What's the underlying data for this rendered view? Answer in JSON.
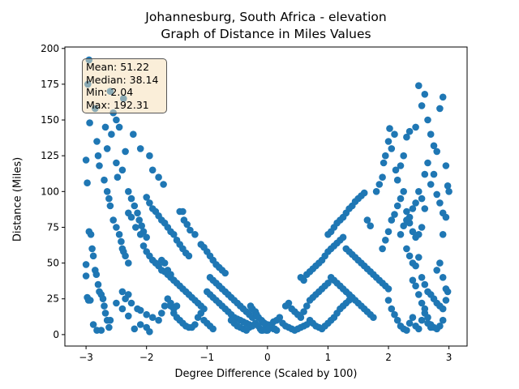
{
  "chart_data": {
    "type": "scatter",
    "title": "Johannesburg, South Africa - elevation",
    "subtitle": "Graph of Distance in Miles Values",
    "xlabel": "Degree Difference (Scaled by 100)",
    "ylabel": "Distance (Miles)",
    "xlim": [
      -3.35,
      3.3
    ],
    "ylim": [
      -8,
      201
    ],
    "xticks": [
      -3,
      -2,
      -1,
      0,
      1,
      2,
      3
    ],
    "yticks": [
      0,
      25,
      50,
      75,
      100,
      125,
      150,
      175,
      200
    ],
    "grid": false,
    "marker_color": "#1f77b4",
    "stats_box": {
      "mean": "Mean: 51.22",
      "median": "Median: 38.14",
      "min": "Min: 2.04",
      "max": "Max: 192.31"
    },
    "points": [
      [
        -2.95,
        192
      ],
      [
        -2.97,
        175
      ],
      [
        -2.94,
        148
      ],
      [
        -2.85,
        158
      ],
      [
        -2.6,
        170
      ],
      [
        -2.55,
        155
      ],
      [
        -2.5,
        150
      ],
      [
        -2.45,
        145
      ],
      [
        -2.38,
        165
      ],
      [
        -2.22,
        140
      ],
      [
        -2.1,
        130
      ],
      [
        -1.95,
        125
      ],
      [
        -1.9,
        115
      ],
      [
        -1.8,
        110
      ],
      [
        -1.72,
        105
      ],
      [
        -3.0,
        122
      ],
      [
        -2.98,
        106
      ],
      [
        -2.95,
        72
      ],
      [
        -2.92,
        70
      ],
      [
        -2.9,
        60
      ],
      [
        -2.88,
        55
      ],
      [
        -2.85,
        45
      ],
      [
        -2.83,
        42
      ],
      [
        -2.8,
        35
      ],
      [
        -2.78,
        30
      ],
      [
        -2.75,
        28
      ],
      [
        -2.72,
        25
      ],
      [
        -2.7,
        20
      ],
      [
        -2.68,
        15
      ],
      [
        -2.65,
        10
      ],
      [
        -2.62,
        5
      ],
      [
        -3.0,
        49
      ],
      [
        -3.0,
        41
      ],
      [
        -2.98,
        26
      ],
      [
        -2.96,
        24
      ],
      [
        -2.93,
        24
      ],
      [
        -2.88,
        7
      ],
      [
        -2.82,
        3
      ],
      [
        -2.75,
        3
      ],
      [
        -2.6,
        10
      ],
      [
        -2.5,
        22
      ],
      [
        -2.4,
        18
      ],
      [
        -2.3,
        13
      ],
      [
        -2.2,
        4
      ],
      [
        -2.1,
        7
      ],
      [
        -2.0,
        5
      ],
      [
        -1.95,
        2
      ],
      [
        -2.82,
        135
      ],
      [
        -2.8,
        125
      ],
      [
        -2.78,
        118
      ],
      [
        -2.7,
        108
      ],
      [
        -2.65,
        100
      ],
      [
        -2.62,
        95
      ],
      [
        -2.6,
        90
      ],
      [
        -2.55,
        80
      ],
      [
        -2.5,
        75
      ],
      [
        -2.45,
        70
      ],
      [
        -2.42,
        65
      ],
      [
        -2.4,
        60
      ],
      [
        -2.38,
        58
      ],
      [
        -2.35,
        55
      ],
      [
        -2.3,
        50
      ],
      [
        -2.68,
        145
      ],
      [
        -2.65,
        130
      ],
      [
        -2.58,
        140
      ],
      [
        -2.5,
        120
      ],
      [
        -2.48,
        110
      ],
      [
        -2.4,
        115
      ],
      [
        -2.35,
        128
      ],
      [
        -2.3,
        100
      ],
      [
        -2.25,
        95
      ],
      [
        -2.2,
        90
      ],
      [
        -2.15,
        85
      ],
      [
        -2.12,
        80
      ],
      [
        -2.08,
        76
      ],
      [
        -2.05,
        72
      ],
      [
        -2.0,
        68
      ],
      [
        -2.3,
        85
      ],
      [
        -2.25,
        82
      ],
      [
        -2.18,
        75
      ],
      [
        -2.1,
        70
      ],
      [
        -2.05,
        62
      ],
      [
        -2.0,
        58
      ],
      [
        -1.95,
        55
      ],
      [
        -1.9,
        52
      ],
      [
        -1.85,
        50
      ],
      [
        -1.8,
        48
      ],
      [
        -1.75,
        45
      ],
      [
        -1.7,
        44
      ],
      [
        -1.65,
        42
      ],
      [
        -1.6,
        40
      ],
      [
        -1.55,
        38
      ],
      [
        -2.0,
        96
      ],
      [
        -1.95,
        92
      ],
      [
        -1.9,
        88
      ],
      [
        -1.85,
        86
      ],
      [
        -1.8,
        83
      ],
      [
        -1.75,
        80
      ],
      [
        -1.7,
        78
      ],
      [
        -1.65,
        75
      ],
      [
        -1.6,
        72
      ],
      [
        -1.55,
        70
      ],
      [
        -1.5,
        66
      ],
      [
        -1.45,
        63
      ],
      [
        -1.4,
        60
      ],
      [
        -1.35,
        57
      ],
      [
        -1.3,
        55
      ],
      [
        -1.45,
        86
      ],
      [
        -1.4,
        86
      ],
      [
        -1.38,
        80
      ],
      [
        -1.33,
        77
      ],
      [
        -1.28,
        73
      ],
      [
        -1.2,
        70
      ],
      [
        -1.1,
        63
      ],
      [
        -1.05,
        61
      ],
      [
        -1.0,
        58
      ],
      [
        -0.95,
        55
      ],
      [
        -0.9,
        52
      ],
      [
        -0.85,
        49
      ],
      [
        -0.8,
        47
      ],
      [
        -0.75,
        45
      ],
      [
        -0.7,
        43
      ],
      [
        -1.75,
        52
      ],
      [
        -1.7,
        50
      ],
      [
        -1.65,
        45
      ],
      [
        -1.6,
        42
      ],
      [
        -1.55,
        38
      ],
      [
        -1.5,
        36
      ],
      [
        -1.45,
        34
      ],
      [
        -1.4,
        32
      ],
      [
        -1.35,
        30
      ],
      [
        -1.3,
        28
      ],
      [
        -1.25,
        26
      ],
      [
        -1.2,
        24
      ],
      [
        -1.15,
        22
      ],
      [
        -1.1,
        20
      ],
      [
        -1.05,
        18
      ],
      [
        -1.6,
        20
      ],
      [
        -1.55,
        15
      ],
      [
        -1.5,
        12
      ],
      [
        -1.45,
        10
      ],
      [
        -1.4,
        8
      ],
      [
        -1.35,
        6
      ],
      [
        -1.3,
        5
      ],
      [
        -1.25,
        5
      ],
      [
        -1.2,
        7
      ],
      [
        -1.15,
        12
      ],
      [
        -1.1,
        15
      ],
      [
        -1.05,
        10
      ],
      [
        -1.0,
        8
      ],
      [
        -0.95,
        6
      ],
      [
        -0.9,
        4
      ],
      [
        -2.4,
        30
      ],
      [
        -2.35,
        25
      ],
      [
        -2.3,
        28
      ],
      [
        -2.25,
        22
      ],
      [
        -2.15,
        18
      ],
      [
        -2.1,
        17
      ],
      [
        -2.0,
        14
      ],
      [
        -1.9,
        12
      ],
      [
        -1.8,
        10
      ],
      [
        -1.75,
        15
      ],
      [
        -1.7,
        20
      ],
      [
        -1.65,
        25
      ],
      [
        -1.6,
        22
      ],
      [
        -1.55,
        18
      ],
      [
        -1.5,
        20
      ],
      [
        -1.0,
        30
      ],
      [
        -0.95,
        28
      ],
      [
        -0.9,
        26
      ],
      [
        -0.85,
        24
      ],
      [
        -0.8,
        22
      ],
      [
        -0.75,
        20
      ],
      [
        -0.7,
        18
      ],
      [
        -0.65,
        16
      ],
      [
        -0.6,
        14
      ],
      [
        -0.55,
        12
      ],
      [
        -0.5,
        11
      ],
      [
        -0.45,
        10
      ],
      [
        -0.4,
        9
      ],
      [
        -0.35,
        8
      ],
      [
        -0.3,
        7
      ],
      [
        -0.95,
        40
      ],
      [
        -0.9,
        38
      ],
      [
        -0.85,
        36
      ],
      [
        -0.8,
        34
      ],
      [
        -0.75,
        32
      ],
      [
        -0.7,
        30
      ],
      [
        -0.65,
        28
      ],
      [
        -0.6,
        26
      ],
      [
        -0.55,
        24
      ],
      [
        -0.5,
        22
      ],
      [
        -0.45,
        20
      ],
      [
        -0.4,
        18
      ],
      [
        -0.35,
        16
      ],
      [
        -0.3,
        14
      ],
      [
        -0.25,
        12
      ],
      [
        -0.6,
        10
      ],
      [
        -0.55,
        8
      ],
      [
        -0.5,
        6
      ],
      [
        -0.45,
        5
      ],
      [
        -0.4,
        4
      ],
      [
        -0.35,
        3
      ],
      [
        -0.3,
        5
      ],
      [
        -0.25,
        6
      ],
      [
        -0.2,
        8
      ],
      [
        -0.15,
        6
      ],
      [
        -0.12,
        4
      ],
      [
        -0.1,
        3
      ],
      [
        -0.08,
        3
      ],
      [
        -0.05,
        4
      ],
      [
        -0.02,
        3
      ],
      [
        -0.28,
        20
      ],
      [
        -0.25,
        18
      ],
      [
        -0.2,
        16
      ],
      [
        -0.18,
        14
      ],
      [
        -0.15,
        12
      ],
      [
        -0.1,
        10
      ],
      [
        -0.08,
        9
      ],
      [
        -0.05,
        8
      ],
      [
        0.0,
        7
      ],
      [
        0.02,
        6
      ],
      [
        0.05,
        5
      ],
      [
        0.08,
        5
      ],
      [
        0.1,
        4
      ],
      [
        0.12,
        4
      ],
      [
        0.15,
        3
      ],
      [
        0.0,
        3
      ],
      [
        0.03,
        5
      ],
      [
        0.06,
        7
      ],
      [
        0.1,
        9
      ],
      [
        0.15,
        10
      ],
      [
        0.2,
        12
      ],
      [
        0.25,
        8
      ],
      [
        0.3,
        6
      ],
      [
        0.35,
        5
      ],
      [
        0.4,
        4
      ],
      [
        0.45,
        3
      ],
      [
        0.5,
        4
      ],
      [
        0.55,
        5
      ],
      [
        0.6,
        6
      ],
      [
        0.65,
        7
      ],
      [
        0.3,
        20
      ],
      [
        0.35,
        22
      ],
      [
        0.4,
        18
      ],
      [
        0.45,
        16
      ],
      [
        0.5,
        14
      ],
      [
        0.55,
        12
      ],
      [
        0.6,
        16
      ],
      [
        0.65,
        20
      ],
      [
        0.7,
        24
      ],
      [
        0.75,
        26
      ],
      [
        0.8,
        28
      ],
      [
        0.85,
        30
      ],
      [
        0.9,
        32
      ],
      [
        0.95,
        34
      ],
      [
        1.0,
        36
      ],
      [
        0.55,
        40
      ],
      [
        0.6,
        38
      ],
      [
        0.65,
        42
      ],
      [
        0.7,
        44
      ],
      [
        0.75,
        46
      ],
      [
        0.8,
        48
      ],
      [
        0.85,
        50
      ],
      [
        0.9,
        52
      ],
      [
        0.95,
        55
      ],
      [
        1.0,
        58
      ],
      [
        1.05,
        60
      ],
      [
        1.1,
        62
      ],
      [
        1.15,
        64
      ],
      [
        1.2,
        66
      ],
      [
        1.25,
        68
      ],
      [
        0.7,
        10
      ],
      [
        0.75,
        8
      ],
      [
        0.8,
        6
      ],
      [
        0.85,
        5
      ],
      [
        0.9,
        4
      ],
      [
        0.95,
        6
      ],
      [
        1.0,
        8
      ],
      [
        1.05,
        10
      ],
      [
        1.1,
        12
      ],
      [
        1.15,
        15
      ],
      [
        1.2,
        18
      ],
      [
        1.25,
        20
      ],
      [
        1.3,
        22
      ],
      [
        1.35,
        24
      ],
      [
        1.4,
        26
      ],
      [
        1.0,
        70
      ],
      [
        1.05,
        72
      ],
      [
        1.1,
        75
      ],
      [
        1.15,
        78
      ],
      [
        1.2,
        80
      ],
      [
        1.25,
        82
      ],
      [
        1.3,
        85
      ],
      [
        1.35,
        88
      ],
      [
        1.4,
        90
      ],
      [
        1.45,
        93
      ],
      [
        1.5,
        95
      ],
      [
        1.55,
        97
      ],
      [
        1.6,
        99
      ],
      [
        1.65,
        80
      ],
      [
        1.7,
        76
      ],
      [
        1.05,
        40
      ],
      [
        1.1,
        38
      ],
      [
        1.15,
        36
      ],
      [
        1.2,
        34
      ],
      [
        1.25,
        32
      ],
      [
        1.3,
        30
      ],
      [
        1.35,
        28
      ],
      [
        1.4,
        26
      ],
      [
        1.45,
        24
      ],
      [
        1.5,
        22
      ],
      [
        1.55,
        20
      ],
      [
        1.6,
        18
      ],
      [
        1.65,
        16
      ],
      [
        1.7,
        14
      ],
      [
        1.75,
        12
      ],
      [
        1.3,
        60
      ],
      [
        1.35,
        58
      ],
      [
        1.4,
        56
      ],
      [
        1.45,
        54
      ],
      [
        1.5,
        52
      ],
      [
        1.55,
        50
      ],
      [
        1.6,
        48
      ],
      [
        1.65,
        46
      ],
      [
        1.7,
        44
      ],
      [
        1.75,
        42
      ],
      [
        1.8,
        40
      ],
      [
        1.85,
        38
      ],
      [
        1.9,
        36
      ],
      [
        1.95,
        34
      ],
      [
        2.0,
        32
      ],
      [
        1.8,
        100
      ],
      [
        1.85,
        105
      ],
      [
        1.9,
        110
      ],
      [
        1.92,
        120
      ],
      [
        1.95,
        125
      ],
      [
        2.0,
        135
      ],
      [
        2.02,
        144
      ],
      [
        2.05,
        130
      ],
      [
        2.1,
        140
      ],
      [
        2.12,
        115
      ],
      [
        2.15,
        108
      ],
      [
        2.2,
        118
      ],
      [
        2.25,
        125
      ],
      [
        2.3,
        138
      ],
      [
        2.35,
        142
      ],
      [
        1.9,
        60
      ],
      [
        1.95,
        66
      ],
      [
        2.0,
        72
      ],
      [
        2.05,
        80
      ],
      [
        2.1,
        84
      ],
      [
        2.15,
        90
      ],
      [
        2.2,
        95
      ],
      [
        2.25,
        100
      ],
      [
        2.3,
        86
      ],
      [
        2.35,
        78
      ],
      [
        2.4,
        72
      ],
      [
        2.45,
        68
      ],
      [
        2.5,
        70
      ],
      [
        2.55,
        75
      ],
      [
        2.6,
        88
      ],
      [
        2.0,
        24
      ],
      [
        2.05,
        18
      ],
      [
        2.1,
        14
      ],
      [
        2.15,
        10
      ],
      [
        2.2,
        6
      ],
      [
        2.25,
        4
      ],
      [
        2.3,
        3
      ],
      [
        2.35,
        8
      ],
      [
        2.4,
        12
      ],
      [
        2.45,
        6
      ],
      [
        2.5,
        4
      ],
      [
        2.55,
        10
      ],
      [
        2.6,
        15
      ],
      [
        2.65,
        8
      ],
      [
        2.7,
        5
      ],
      [
        2.45,
        145
      ],
      [
        2.5,
        174
      ],
      [
        2.55,
        160
      ],
      [
        2.6,
        168
      ],
      [
        2.65,
        150
      ],
      [
        2.7,
        140
      ],
      [
        2.75,
        132
      ],
      [
        2.8,
        128
      ],
      [
        2.85,
        158
      ],
      [
        2.9,
        166
      ],
      [
        2.95,
        118
      ],
      [
        2.98,
        104
      ],
      [
        3.0,
        100
      ],
      [
        2.95,
        82
      ],
      [
        2.9,
        70
      ],
      [
        2.3,
        60
      ],
      [
        2.35,
        55
      ],
      [
        2.4,
        50
      ],
      [
        2.45,
        48
      ],
      [
        2.5,
        54
      ],
      [
        2.55,
        40
      ],
      [
        2.6,
        35
      ],
      [
        2.65,
        30
      ],
      [
        2.7,
        28
      ],
      [
        2.75,
        25
      ],
      [
        2.8,
        22
      ],
      [
        2.85,
        20
      ],
      [
        2.9,
        18
      ],
      [
        2.95,
        24
      ],
      [
        2.98,
        30
      ],
      [
        2.7,
        105
      ],
      [
        2.75,
        112
      ],
      [
        2.8,
        98
      ],
      [
        2.85,
        92
      ],
      [
        2.9,
        85
      ],
      [
        2.6,
        112
      ],
      [
        2.65,
        120
      ],
      [
        2.55,
        95
      ],
      [
        2.5,
        100
      ],
      [
        2.45,
        92
      ],
      [
        2.4,
        88
      ],
      [
        2.35,
        82
      ],
      [
        2.3,
        80
      ],
      [
        2.25,
        76
      ],
      [
        2.2,
        70
      ],
      [
        2.8,
        45
      ],
      [
        2.85,
        50
      ],
      [
        2.9,
        40
      ],
      [
        2.95,
        32
      ],
      [
        2.9,
        10
      ],
      [
        2.85,
        6
      ],
      [
        2.8,
        4
      ],
      [
        2.75,
        5
      ],
      [
        2.7,
        7
      ],
      [
        2.65,
        12
      ],
      [
        2.6,
        18
      ],
      [
        2.55,
        22
      ],
      [
        2.5,
        28
      ],
      [
        2.45,
        34
      ],
      [
        2.4,
        38
      ]
    ]
  }
}
